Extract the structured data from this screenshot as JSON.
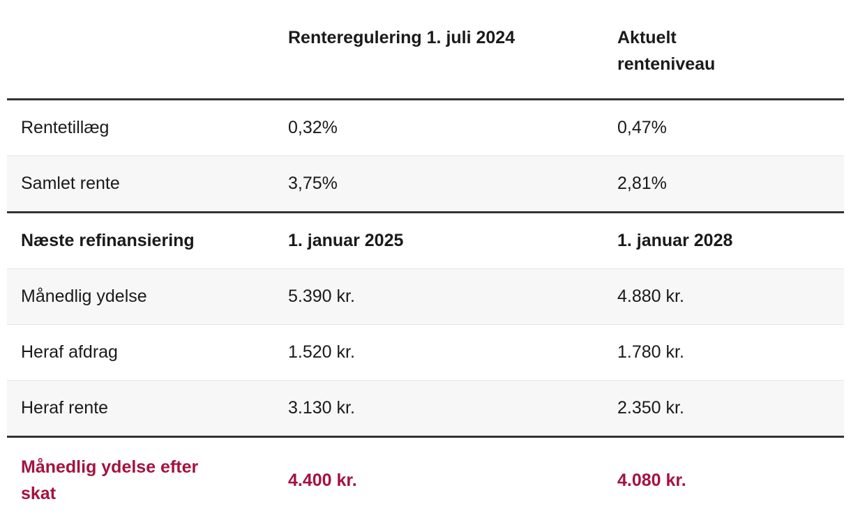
{
  "chart_data": {
    "type": "table",
    "columns": [
      "",
      "Renteregulering 1. juli 2024",
      "Aktuelt renteniveau"
    ],
    "rows": [
      {
        "label": "Rentetillæg",
        "values": [
          "0,32%",
          "0,47%"
        ],
        "style": "normal"
      },
      {
        "label": "Samlet rente",
        "values": [
          "3,75%",
          "2,81%"
        ],
        "style": "normal"
      },
      {
        "label": "Næste refinansiering",
        "values": [
          "1. januar 2025",
          "1. januar 2028"
        ],
        "style": "bold"
      },
      {
        "label": "Månedlig ydelse",
        "values": [
          "5.390 kr.",
          "4.880 kr."
        ],
        "style": "normal"
      },
      {
        "label": "Heraf afdrag",
        "values": [
          "1.520 kr.",
          "1.780 kr."
        ],
        "style": "normal"
      },
      {
        "label": "Heraf rente",
        "values": [
          "3.130 kr.",
          "2.350 kr."
        ],
        "style": "normal"
      },
      {
        "label": "Månedlig ydelse efter skat",
        "values": [
          "4.400 kr.",
          "4.080 kr."
        ],
        "style": "highlight"
      }
    ],
    "layout": {
      "striping": "alternate rows shaded",
      "heavy_rules": [
        "below header",
        "above 'Næste refinansiering' row",
        "above 'Månedlig ydelse efter skat' row"
      ],
      "legend": "none"
    }
  },
  "colors": {
    "background": "#ffffff",
    "text": "#1a1a1a",
    "highlight_text": "#a41240",
    "row_alt_bg": "#f7f7f7",
    "heavy_border": "#333333",
    "light_border": "#e7e7e7"
  }
}
